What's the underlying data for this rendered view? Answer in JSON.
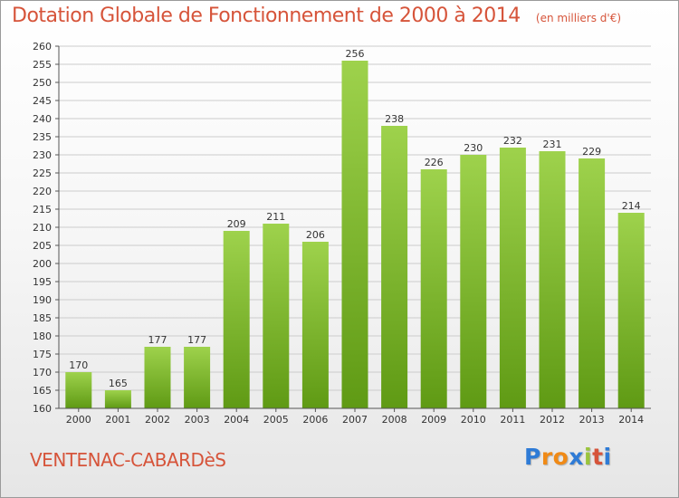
{
  "header": {
    "title": "Dotation Globale de Fonctionnement de 2000 à 2014",
    "subtitle": "(en milliers d'€)"
  },
  "commune": "VENTENAC-CABARDèS",
  "logo": {
    "text": "Proxiti",
    "letter_colors": [
      "#2e7bd6",
      "#f08a16",
      "#f08a16",
      "#2e7bd6",
      "#9ac43c",
      "#d6543a",
      "#2e7bd6"
    ]
  },
  "colors": {
    "bar_top": "#9ed24c",
    "bar_bottom": "#5f9a14",
    "title": "#d6543a",
    "grid": "#cccccc"
  },
  "chart_data": {
    "type": "bar",
    "title": "Dotation Globale de Fonctionnement de 2000 à 2014",
    "subtitle": "(en milliers d'€)",
    "xlabel": "",
    "ylabel": "",
    "categories": [
      "2000",
      "2001",
      "2002",
      "2003",
      "2004",
      "2005",
      "2006",
      "2007",
      "2008",
      "2009",
      "2010",
      "2011",
      "2012",
      "2013",
      "2014"
    ],
    "values": [
      170,
      165,
      177,
      177,
      209,
      211,
      206,
      256,
      238,
      226,
      230,
      232,
      231,
      229,
      214
    ],
    "ylim": [
      160,
      260
    ],
    "ytick_step": 5,
    "grid": true,
    "legend": "none"
  }
}
